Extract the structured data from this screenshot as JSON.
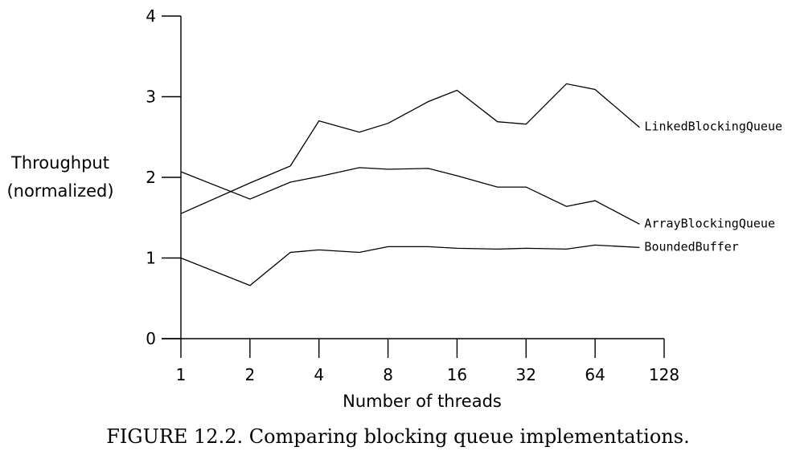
{
  "chart_data": {
    "type": "line",
    "xlabel": "Number of threads",
    "ylabel_lines": [
      "Throughput",
      "(normalized)"
    ],
    "x_scale": "log2",
    "xlim": [
      1,
      128
    ],
    "ylim": [
      0,
      4
    ],
    "x_ticks": [
      1,
      2,
      4,
      8,
      16,
      32,
      64,
      128
    ],
    "y_ticks": [
      0,
      1,
      2,
      3,
      4
    ],
    "grid": false,
    "series": [
      {
        "name": "LinkedBlockingQueue",
        "x": [
          1,
          2,
          3,
          4,
          6,
          8,
          12,
          16,
          24,
          32,
          48,
          64,
          100
        ],
        "y": [
          1.55,
          1.93,
          2.14,
          2.7,
          2.56,
          2.67,
          2.94,
          3.08,
          2.69,
          2.66,
          3.16,
          3.09,
          2.62
        ]
      },
      {
        "name": "ArrayBlockingQueue",
        "x": [
          1,
          2,
          3,
          4,
          6,
          8,
          12,
          16,
          24,
          32,
          48,
          64,
          100
        ],
        "y": [
          2.07,
          1.73,
          1.94,
          2.01,
          2.12,
          2.1,
          2.11,
          2.02,
          1.88,
          1.88,
          1.64,
          1.71,
          1.42
        ]
      },
      {
        "name": "BoundedBuffer",
        "x": [
          1,
          2,
          3,
          4,
          6,
          8,
          12,
          16,
          24,
          32,
          48,
          64,
          100
        ],
        "y": [
          1.0,
          0.66,
          1.07,
          1.1,
          1.07,
          1.14,
          1.14,
          1.12,
          1.11,
          1.12,
          1.11,
          1.16,
          1.13
        ]
      }
    ]
  },
  "caption": "FIGURE 12.2. Comparing blocking queue implementations."
}
